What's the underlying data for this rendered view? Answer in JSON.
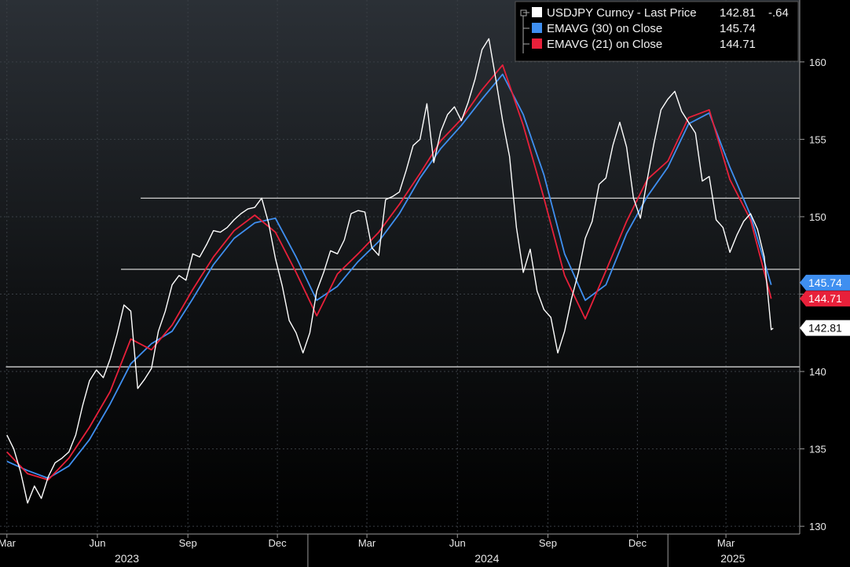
{
  "chart_data": {
    "type": "line",
    "ylim": [
      129.5,
      164
    ],
    "y_ticks": [
      130,
      135,
      140,
      145,
      150,
      155,
      160
    ],
    "y_tick_labels": [
      "130",
      "135",
      "140",
      "145",
      "150",
      "155",
      "160"
    ],
    "x_month_labels": [
      "Mar",
      "Jun",
      "Sep",
      "Dec",
      "Mar",
      "Jun",
      "Sep",
      "Dec",
      "Mar"
    ],
    "x_year_labels": [
      "2023",
      "2024",
      "2025"
    ],
    "horizontal_lines": [
      140.3,
      146.6,
      151.2
    ],
    "legend": {
      "placement": "top-right",
      "entries": [
        {
          "label": "USDJPY Curncy - Last Price",
          "value": "142.81",
          "change": "-.64",
          "color": "#ffffff"
        },
        {
          "label": "EMAVG (30)  on Close",
          "value": "145.74",
          "color": "#3f8ff0"
        },
        {
          "label": "EMAVG (21)  on Close",
          "value": "144.71",
          "color": "#e8203a"
        }
      ]
    },
    "last_value_tags": [
      {
        "label": "145.74",
        "value": 145.74,
        "color": "#3f8ff0",
        "text_color": "#ffffff"
      },
      {
        "label": "144.71",
        "value": 144.71,
        "color": "#e8203a",
        "text_color": "#ffffff"
      },
      {
        "label": "142.81",
        "value": 142.81,
        "color": "#ffffff",
        "text_color": "#000000"
      }
    ],
    "series": [
      {
        "name": "USDJPY Curncy - Last Price",
        "color": "#ffffff",
        "x": [
          "2023-03-01",
          "2023-03-08",
          "2023-03-15",
          "2023-03-22",
          "2023-03-29",
          "2023-04-05",
          "2023-04-12",
          "2023-04-19",
          "2023-04-26",
          "2023-05-03",
          "2023-05-10",
          "2023-05-17",
          "2023-05-24",
          "2023-05-31",
          "2023-06-07",
          "2023-06-14",
          "2023-06-21",
          "2023-06-28",
          "2023-07-05",
          "2023-07-12",
          "2023-07-19",
          "2023-07-26",
          "2023-08-02",
          "2023-08-09",
          "2023-08-16",
          "2023-08-23",
          "2023-08-30",
          "2023-09-06",
          "2023-09-13",
          "2023-09-20",
          "2023-09-27",
          "2023-10-04",
          "2023-10-11",
          "2023-10-18",
          "2023-10-25",
          "2023-11-01",
          "2023-11-08",
          "2023-11-15",
          "2023-11-22",
          "2023-11-29",
          "2023-12-06",
          "2023-12-13",
          "2023-12-20",
          "2023-12-27",
          "2024-01-03",
          "2024-01-10",
          "2024-01-17",
          "2024-01-24",
          "2024-01-31",
          "2024-02-07",
          "2024-02-14",
          "2024-02-21",
          "2024-02-28",
          "2024-03-06",
          "2024-03-13",
          "2024-03-20",
          "2024-03-27",
          "2024-04-03",
          "2024-04-10",
          "2024-04-17",
          "2024-04-24",
          "2024-05-01",
          "2024-05-08",
          "2024-05-15",
          "2024-05-22",
          "2024-05-29",
          "2024-06-05",
          "2024-06-12",
          "2024-06-19",
          "2024-06-26",
          "2024-07-03",
          "2024-07-10",
          "2024-07-17",
          "2024-07-24",
          "2024-07-31",
          "2024-08-07",
          "2024-08-14",
          "2024-08-21",
          "2024-08-28",
          "2024-09-04",
          "2024-09-11",
          "2024-09-18",
          "2024-09-25",
          "2024-10-02",
          "2024-10-09",
          "2024-10-16",
          "2024-10-23",
          "2024-10-30",
          "2024-11-06",
          "2024-11-13",
          "2024-11-20",
          "2024-11-27",
          "2024-12-04",
          "2024-12-11",
          "2024-12-18",
          "2024-12-25",
          "2025-01-01",
          "2025-01-08",
          "2025-01-15",
          "2025-01-22",
          "2025-01-29",
          "2025-02-05",
          "2025-02-12",
          "2025-02-19",
          "2025-02-26",
          "2025-03-05",
          "2025-03-12",
          "2025-03-19",
          "2025-03-26",
          "2025-04-02",
          "2025-04-09",
          "2025-04-16",
          "2025-04-18"
        ],
        "values": [
          135.9,
          135.0,
          133.5,
          131.5,
          132.6,
          131.8,
          133.2,
          134.1,
          134.4,
          134.8,
          135.9,
          137.8,
          139.4,
          140.1,
          139.6,
          140.8,
          142.4,
          144.3,
          143.9,
          138.9,
          139.5,
          140.2,
          142.6,
          143.9,
          145.6,
          146.2,
          145.9,
          147.6,
          147.4,
          148.2,
          149.1,
          149.0,
          149.3,
          149.8,
          150.2,
          150.5,
          150.6,
          151.2,
          149.6,
          147.3,
          145.5,
          143.3,
          142.5,
          141.2,
          142.5,
          145.2,
          146.4,
          147.8,
          147.6,
          148.5,
          150.2,
          150.4,
          150.3,
          148.0,
          147.5,
          151.1,
          151.3,
          151.6,
          153.0,
          154.6,
          155.0,
          157.3,
          153.5,
          155.5,
          156.6,
          157.1,
          156.2,
          157.4,
          158.9,
          160.8,
          161.5,
          158.9,
          156.2,
          153.9,
          149.3,
          146.4,
          147.9,
          145.2,
          144.0,
          143.5,
          141.2,
          142.6,
          144.7,
          146.4,
          148.6,
          149.7,
          152.1,
          152.5,
          154.6,
          156.1,
          154.5,
          151.2,
          149.9,
          152.4,
          154.8,
          156.9,
          157.6,
          158.1,
          156.8,
          156.1,
          155.4,
          152.3,
          152.6,
          149.8,
          149.3,
          147.7,
          148.8,
          149.7,
          150.2,
          149.2,
          147.4,
          142.7,
          142.8
        ]
      },
      {
        "name": "EMAVG (30)  on Close",
        "color": "#3f8ff0",
        "x": [
          "2023-03-01",
          "2023-03-22",
          "2023-04-12",
          "2023-05-03",
          "2023-05-24",
          "2023-06-14",
          "2023-07-05",
          "2023-07-26",
          "2023-08-16",
          "2023-09-06",
          "2023-09-27",
          "2023-10-18",
          "2023-11-08",
          "2023-11-29",
          "2023-12-20",
          "2024-01-10",
          "2024-01-31",
          "2024-02-21",
          "2024-03-13",
          "2024-04-03",
          "2024-04-24",
          "2024-05-15",
          "2024-06-05",
          "2024-06-26",
          "2024-07-17",
          "2024-08-07",
          "2024-08-28",
          "2024-09-18",
          "2024-10-09",
          "2024-10-30",
          "2024-11-20",
          "2024-12-11",
          "2025-01-01",
          "2025-01-22",
          "2025-02-12",
          "2025-03-05",
          "2025-03-26",
          "2025-04-16"
        ],
        "values": [
          134.2,
          133.6,
          133.1,
          133.9,
          135.6,
          137.9,
          140.5,
          141.8,
          142.6,
          144.7,
          146.9,
          148.6,
          149.6,
          149.9,
          147.4,
          144.6,
          145.5,
          147.1,
          148.4,
          150.2,
          152.5,
          154.4,
          155.9,
          157.6,
          159.2,
          156.6,
          152.7,
          147.6,
          144.6,
          145.6,
          148.9,
          151.3,
          153.2,
          156.0,
          156.7,
          153.2,
          150.1,
          145.6
        ]
      },
      {
        "name": "EMAVG (21)  on Close",
        "color": "#e8203a",
        "x": [
          "2023-03-01",
          "2023-03-22",
          "2023-04-12",
          "2023-05-03",
          "2023-05-24",
          "2023-06-14",
          "2023-07-05",
          "2023-07-26",
          "2023-08-16",
          "2023-09-06",
          "2023-09-27",
          "2023-10-18",
          "2023-11-08",
          "2023-11-29",
          "2023-12-20",
          "2024-01-10",
          "2024-01-31",
          "2024-02-21",
          "2024-03-13",
          "2024-04-03",
          "2024-04-24",
          "2024-05-15",
          "2024-06-05",
          "2024-06-26",
          "2024-07-17",
          "2024-08-07",
          "2024-08-28",
          "2024-09-18",
          "2024-10-09",
          "2024-10-30",
          "2024-11-20",
          "2024-12-11",
          "2025-01-01",
          "2025-01-22",
          "2025-02-12",
          "2025-03-05",
          "2025-03-26",
          "2025-04-16"
        ],
        "values": [
          134.8,
          133.4,
          133.0,
          134.4,
          136.4,
          138.7,
          142.1,
          141.4,
          143.0,
          145.3,
          147.4,
          149.1,
          150.1,
          149.0,
          146.4,
          143.6,
          146.3,
          147.6,
          149.0,
          150.8,
          152.8,
          154.9,
          156.3,
          158.2,
          159.8,
          155.9,
          151.2,
          146.2,
          143.4,
          146.5,
          149.7,
          152.4,
          153.6,
          156.4,
          156.9,
          152.4,
          149.8,
          144.7
        ]
      }
    ]
  }
}
